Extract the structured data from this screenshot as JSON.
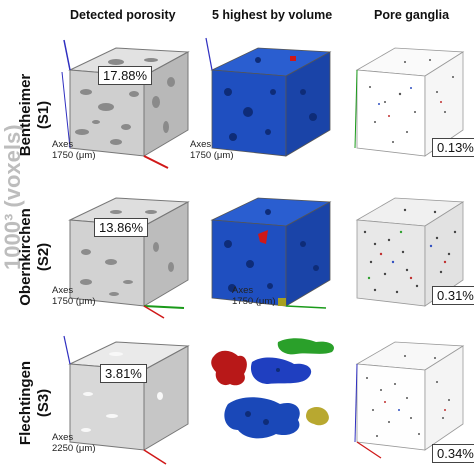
{
  "side_label": "1000³ (voxels)",
  "columns": [
    "Detected porosity",
    "5 highest by volume",
    "Pore ganglia"
  ],
  "rows": [
    {
      "name": "Bentheimer",
      "code": "(S1)",
      "porosity": "17.88%",
      "ganglia": "0.13%",
      "axes": "Axes",
      "size": "1750 (μm)"
    },
    {
      "name": "Obernkirchen",
      "code": "(S2)",
      "porosity": "13.86%",
      "ganglia": "0.31%",
      "axes": "Axes",
      "size": "1750 (μm)"
    },
    {
      "name": "Flechtingen",
      "code": "(S3)",
      "porosity": "3.81%",
      "ganglia": "0.34%",
      "axes": "Axes",
      "size": "2250 (μm)"
    }
  ],
  "colors": {
    "cube_gray": "#c8c8c8",
    "pore_blue": "#1f4fc0",
    "axis_red": "#d01818",
    "axis_green": "#1a9a1a",
    "axis_blue": "#3030c0"
  }
}
